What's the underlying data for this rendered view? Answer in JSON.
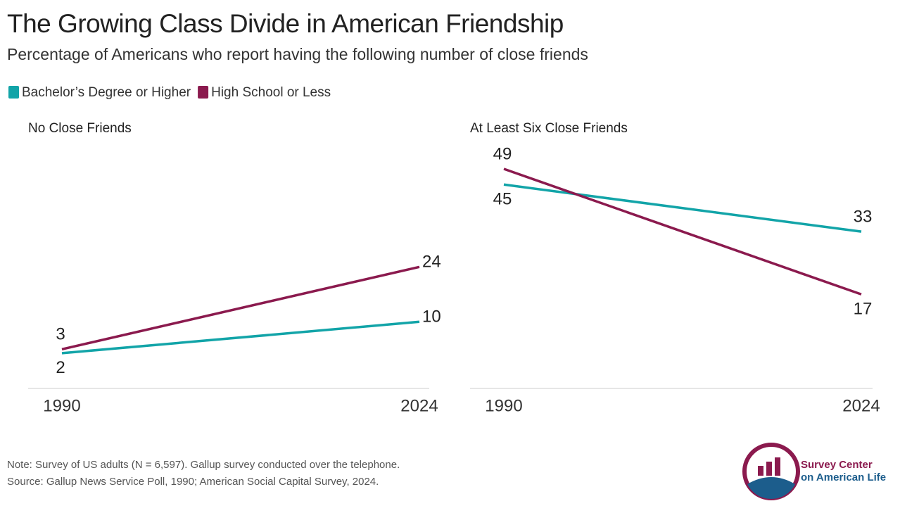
{
  "title": "The Growing Class Divide in American Friendship",
  "subtitle": "Percentage of Americans who report having the following number of close friends",
  "note": "Note: Survey of US adults (N = 6,597). Gallup survey conducted over the telephone.",
  "source": "Source: Gallup News Service Poll, 1990; American Social Capital Survey, 2024.",
  "logo": {
    "line1": "Survey Center",
    "line2": "on American Life"
  },
  "chart_data": [
    {
      "type": "line",
      "title": "No Close Friends",
      "categories": [
        "1990",
        "2024"
      ],
      "series": [
        {
          "name": "Bachelor’s Degree or Higher",
          "color": "#12a4a8",
          "values": [
            2,
            10
          ]
        },
        {
          "name": "High School or Less",
          "color": "#8b1a4e",
          "values": [
            3,
            24
          ]
        }
      ],
      "ylim": [
        -7,
        56
      ]
    },
    {
      "type": "line",
      "title": "At Least Six Close Friends",
      "categories": [
        "1990",
        "2024"
      ],
      "series": [
        {
          "color": "#12a4a8",
          "values": [
            45,
            33
          ]
        },
        {
          "color": "#8b1a4e",
          "values": [
            49,
            17
          ]
        }
      ],
      "ylim": [
        -7,
        56
      ]
    }
  ]
}
